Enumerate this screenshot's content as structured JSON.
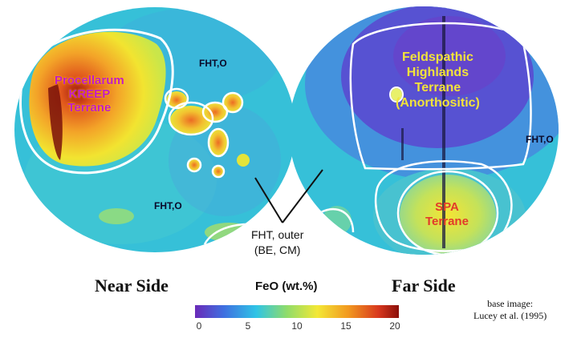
{
  "near_side": {
    "title": "Near Side",
    "labels": {
      "pkt": [
        "Procellarum",
        "KREEP",
        "Terrane"
      ],
      "fht_upper": "FHT,O",
      "fht_lower": "FHT,O"
    }
  },
  "far_side": {
    "title": "Far Side",
    "labels": {
      "fht": [
        "Feldspathic",
        "Highlands",
        "Terrane",
        "(Anorthositic)"
      ],
      "fht_right": "FHT,O",
      "spa": [
        "SPA",
        "Terrane"
      ]
    }
  },
  "annotation": {
    "lines": [
      "FHT, outer",
      "(BE, CM)"
    ]
  },
  "legend": {
    "title": "FeO (wt.%)",
    "ticks": [
      "0",
      "5",
      "10",
      "15",
      "20"
    ],
    "tick_values": [
      0,
      5,
      10,
      15,
      20
    ],
    "range": [
      0,
      20
    ],
    "colors": [
      "#6a2ab8",
      "#3f6fe0",
      "#2fc4e6",
      "#8fdc6a",
      "#f3e836",
      "#f29a20",
      "#d8381e",
      "#8a0f0a"
    ]
  },
  "credit": [
    "base image:",
    "Lucey et al. (1995)"
  ],
  "map_colors": {
    "background": "#36c0d8",
    "highland": "#5a4bd0",
    "mare_yellow": "#f2e430",
    "mare_orange": "#f08a2a",
    "mare_red": "#8a1a0e",
    "boundary": "#ffffff"
  }
}
